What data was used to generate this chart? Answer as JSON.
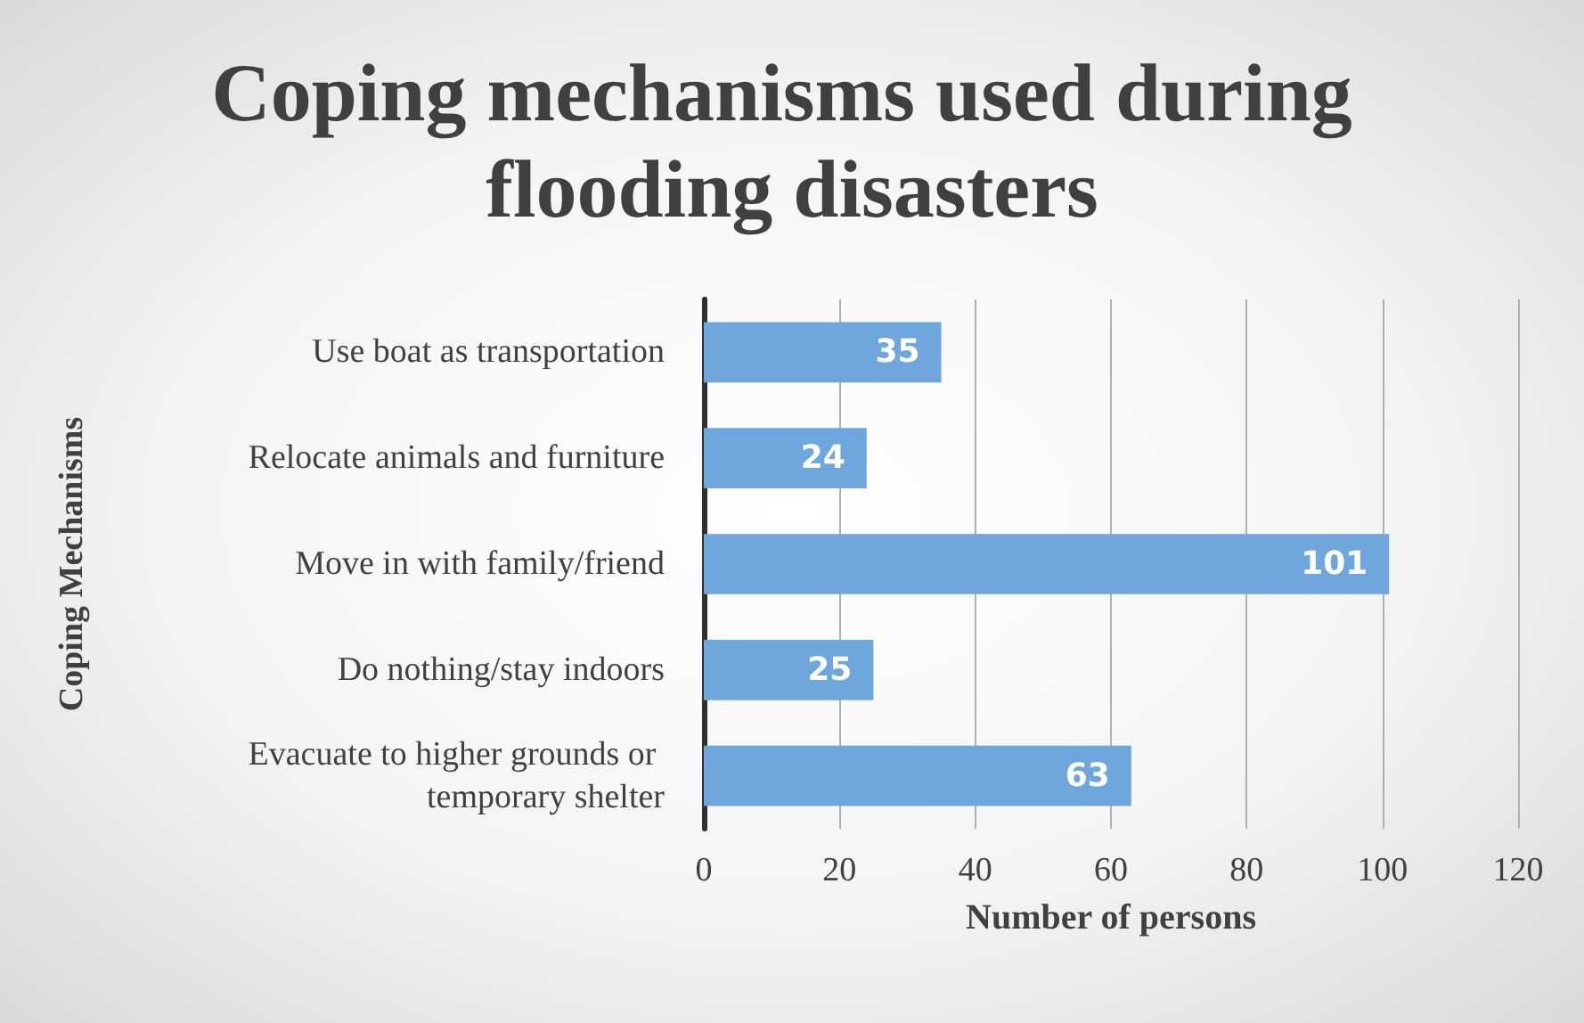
{
  "chart_data": {
    "type": "bar",
    "orientation": "horizontal",
    "title": "Coping mechanisms used during flooding disasters",
    "xlabel": "Number of persons",
    "ylabel": "Coping Mechanisms",
    "categories": [
      "Use boat as transportation",
      "Relocate animals and furniture",
      "Move in with family/friend",
      "Do nothing/stay indoors",
      "Evacuate to higher grounds or temporary shelter"
    ],
    "values": [
      35,
      24,
      101,
      25,
      63
    ],
    "color": "#6fa6dc",
    "xlim": [
      0,
      120
    ],
    "xticks": [
      0,
      20,
      40,
      60,
      80,
      100,
      120
    ],
    "grid": "x",
    "data_labels": true
  }
}
